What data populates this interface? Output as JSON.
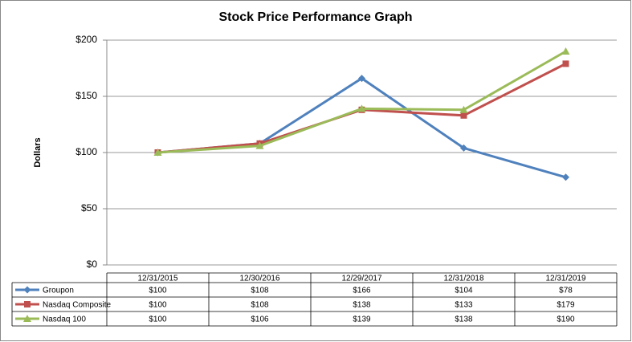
{
  "chart_data": {
    "type": "line",
    "title": "Stock Price Performance Graph",
    "ylabel": "Dollars",
    "categories": [
      "12/31/2015",
      "12/30/2016",
      "12/29/2017",
      "12/31/2018",
      "12/31/2019"
    ],
    "series": [
      {
        "name": "Groupon",
        "color": "#4f81bd",
        "marker": "diamond",
        "values": [
          100,
          108,
          166,
          104,
          78
        ],
        "value_labels": [
          "$100",
          "$108",
          "$166",
          "$104",
          "$78"
        ]
      },
      {
        "name": "Nasdaq Composite",
        "color": "#c0504d",
        "marker": "square",
        "values": [
          100,
          108,
          138,
          133,
          179
        ],
        "value_labels": [
          "$100",
          "$108",
          "$138",
          "$133",
          "$179"
        ]
      },
      {
        "name": "Nasdaq 100",
        "color": "#9bbb59",
        "marker": "triangle",
        "values": [
          100,
          106,
          139,
          138,
          190
        ],
        "value_labels": [
          "$100",
          "$106",
          "$139",
          "$138",
          "$190"
        ]
      }
    ],
    "ylim": [
      0,
      200
    ],
    "yticks": [
      {
        "value": 0,
        "label": "$0"
      },
      {
        "value": 50,
        "label": "$50"
      },
      {
        "value": 100,
        "label": "$100"
      },
      {
        "value": 150,
        "label": "$150"
      },
      {
        "value": 200,
        "label": "$200"
      }
    ],
    "grid": true
  }
}
